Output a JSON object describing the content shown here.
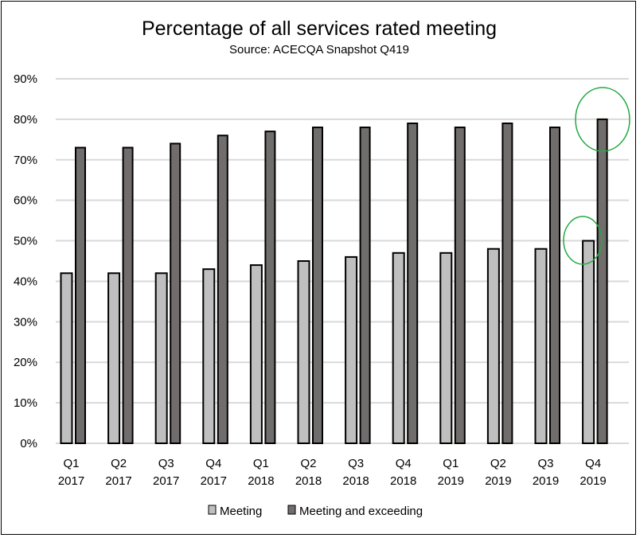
{
  "chart_data": {
    "type": "bar",
    "title": "Percentage of all services rated meeting",
    "subtitle": "Source: ACECQA Snapshot Q419",
    "categories": [
      [
        "Q1",
        "2017"
      ],
      [
        "Q2",
        "2017"
      ],
      [
        "Q3",
        "2017"
      ],
      [
        "Q4",
        "2017"
      ],
      [
        "Q1",
        "2018"
      ],
      [
        "Q2",
        "2018"
      ],
      [
        "Q3",
        "2018"
      ],
      [
        "Q4",
        "2018"
      ],
      [
        "Q1",
        "2019"
      ],
      [
        "Q2",
        "2019"
      ],
      [
        "Q3",
        "2019"
      ],
      [
        "Q4",
        "2019"
      ]
    ],
    "series": [
      {
        "name": "Meeting",
        "color": "#bfbfbf",
        "values": [
          42,
          42,
          42,
          43,
          44,
          45,
          46,
          47,
          47,
          48,
          48,
          50
        ]
      },
      {
        "name": "Meeting and exceeding",
        "color": "#716d6c",
        "values": [
          73,
          73,
          74,
          76,
          77,
          78,
          78,
          79,
          78,
          79,
          78,
          80
        ]
      }
    ],
    "ylim": [
      0,
      90
    ],
    "yticks": [
      "0%",
      "10%",
      "20%",
      "30%",
      "40%",
      "50%",
      "60%",
      "70%",
      "80%",
      "90%"
    ],
    "grid": true,
    "legend": "bottom",
    "annotations": [
      {
        "type": "ellipse",
        "color": "#22aa44",
        "target": "Meeting and exceeding, Q4 2019"
      },
      {
        "type": "ellipse",
        "color": "#22aa44",
        "target": "Meeting, Q4 2019"
      }
    ]
  }
}
